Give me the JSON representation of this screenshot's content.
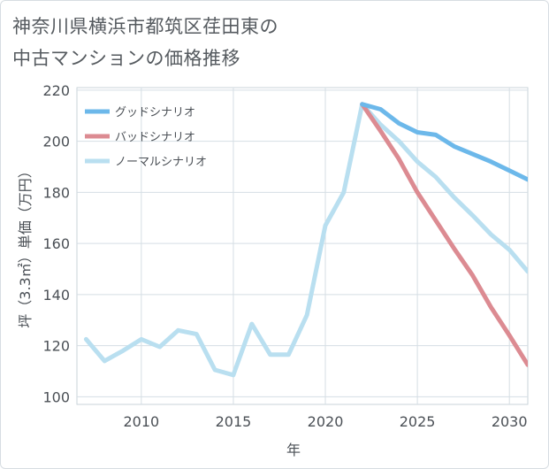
{
  "title_line1": "神奈川県横浜市都筑区荏田東の",
  "title_line2": "中古マンションの価格推移",
  "chart_data": {
    "type": "line",
    "title": "神奈川県横浜市都筑区荏田東の中古マンションの価格推移",
    "xlabel": "年",
    "ylabel": "坪（3.3㎡）単価（万円）",
    "xlim": [
      2006.5,
      2031
    ],
    "ylim": [
      97,
      221
    ],
    "xticks": [
      2010,
      2015,
      2020,
      2025,
      2030
    ],
    "yticks": [
      100,
      120,
      140,
      160,
      180,
      200,
      220
    ],
    "grid": true,
    "legend_position": "top-left",
    "series": [
      {
        "name": "グッドシナリオ",
        "color": "#6cb8ea",
        "x": [
          2022,
          2023,
          2024,
          2025,
          2026,
          2027,
          2028,
          2029,
          2030,
          2031
        ],
        "values": [
          214.5,
          212.5,
          207,
          203.5,
          202.5,
          198,
          195,
          192,
          188.5,
          185
        ]
      },
      {
        "name": "バッドシナリオ",
        "color": "#dc8b92",
        "x": [
          2022,
          2023,
          2024,
          2025,
          2026,
          2027,
          2028,
          2029,
          2030,
          2031
        ],
        "values": [
          214.5,
          204,
          193,
          180,
          169,
          158,
          147.5,
          135,
          124,
          112.5
        ]
      },
      {
        "name": "ノーマルシナリオ",
        "color": "#b9dff0",
        "x": [
          2007,
          2008,
          2009,
          2010,
          2011,
          2012,
          2013,
          2014,
          2015,
          2016,
          2017,
          2018,
          2019,
          2020,
          2021,
          2022,
          2023,
          2024,
          2025,
          2026,
          2027,
          2028,
          2029,
          2030,
          2031
        ],
        "values": [
          122.5,
          114,
          118,
          122.5,
          119.5,
          126,
          124.5,
          110.5,
          108.5,
          128.5,
          116.5,
          116.5,
          132,
          167,
          180,
          214.5,
          206.5,
          200,
          192,
          186,
          178,
          171,
          163.5,
          157.5,
          149
        ]
      }
    ]
  }
}
